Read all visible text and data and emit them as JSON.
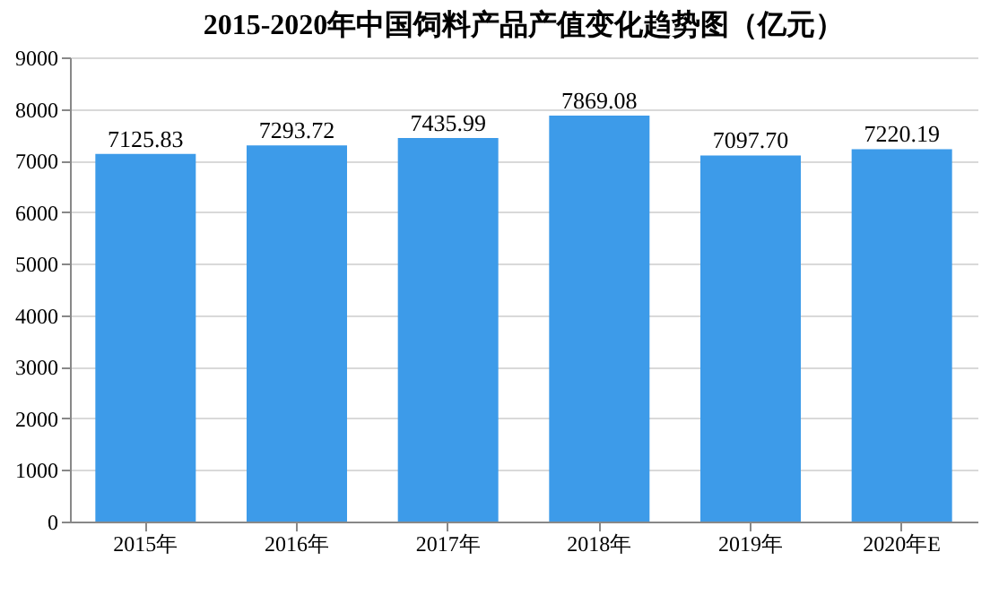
{
  "chart_data": {
    "type": "bar",
    "title": "2015-2020年中国饲料产品产值变化趋势图（亿元）",
    "categories": [
      "2015年",
      "2016年",
      "2017年",
      "2018年",
      "2019年",
      "2020年E"
    ],
    "values": [
      7125.83,
      7293.72,
      7435.99,
      7869.08,
      7097.7,
      7220.19
    ],
    "value_labels": [
      "7125.83",
      "7293.72",
      "7435.99",
      "7869.08",
      "7097.70",
      "7220.19"
    ],
    "color": "#3d9be9",
    "ylim": [
      0,
      9000
    ],
    "yticks": [
      0,
      1000,
      2000,
      3000,
      4000,
      5000,
      6000,
      7000,
      8000,
      9000
    ],
    "grid": "y"
  }
}
